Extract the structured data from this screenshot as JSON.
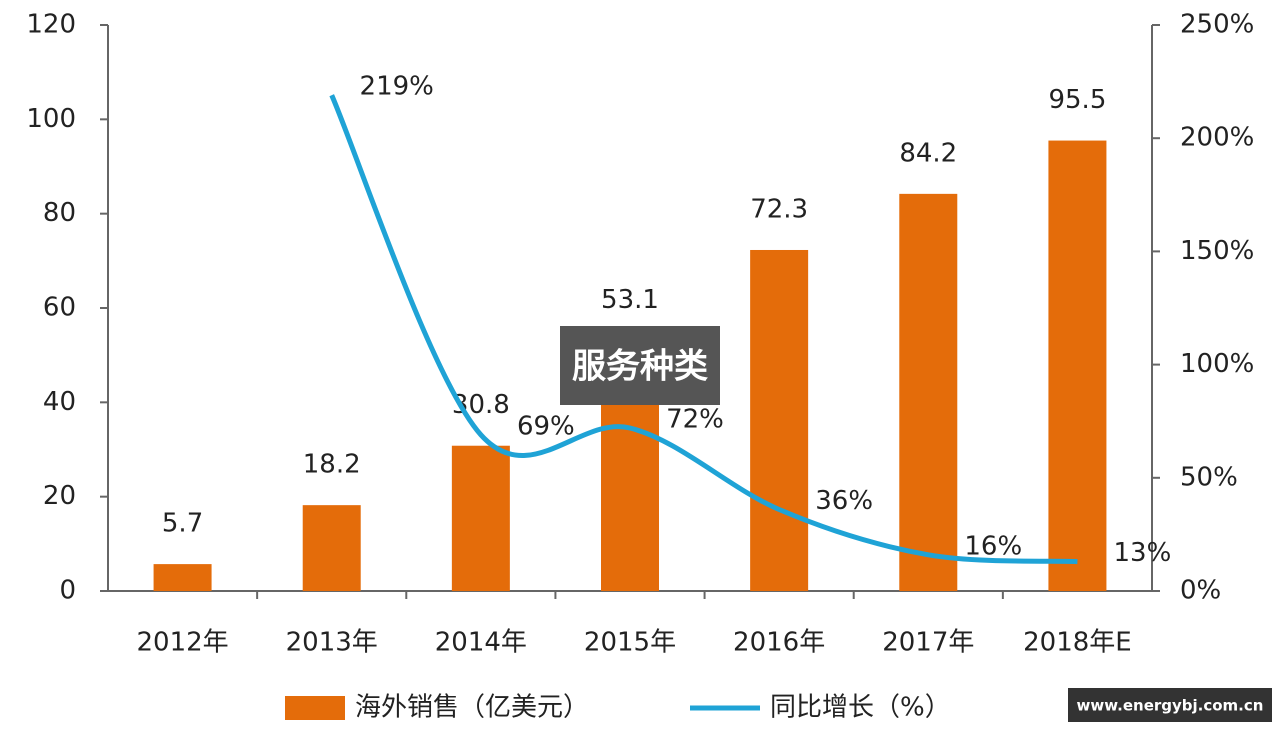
{
  "chart_data": {
    "type": "bar-line",
    "categories": [
      "2012年",
      "2013年",
      "2014年",
      "2015年",
      "2016年",
      "2017年",
      "2018年E"
    ],
    "series": [
      {
        "name": "海外销售（亿美元）",
        "type": "bar",
        "color": "#e46c0a",
        "values": [
          5.7,
          18.2,
          30.8,
          53.1,
          72.3,
          84.2,
          95.5
        ]
      },
      {
        "name": "同比增长（%）",
        "type": "line",
        "axis": "y2",
        "color": "#1fa3d6",
        "values": [
          null,
          219,
          69,
          72,
          36,
          16,
          13
        ],
        "value_labels": [
          null,
          "219%",
          "69%",
          "72%",
          "36%",
          "16%",
          "13%"
        ]
      }
    ],
    "ylim": [
      0,
      120
    ],
    "yticks": [
      0,
      20,
      40,
      60,
      80,
      100,
      120
    ],
    "y2lim": [
      0,
      250
    ],
    "y2ticks": [
      {
        "value": 0,
        "label": "0%"
      },
      {
        "value": 50,
        "label": "50%"
      },
      {
        "value": 100,
        "label": "100%"
      },
      {
        "value": 150,
        "label": "150%"
      },
      {
        "value": 200,
        "label": "200%"
      },
      {
        "value": 250,
        "label": "250%"
      }
    ],
    "grid": false,
    "legend": "bottom",
    "overlay_label": "服务种类",
    "source_label": "www.energybj.com.cn"
  }
}
